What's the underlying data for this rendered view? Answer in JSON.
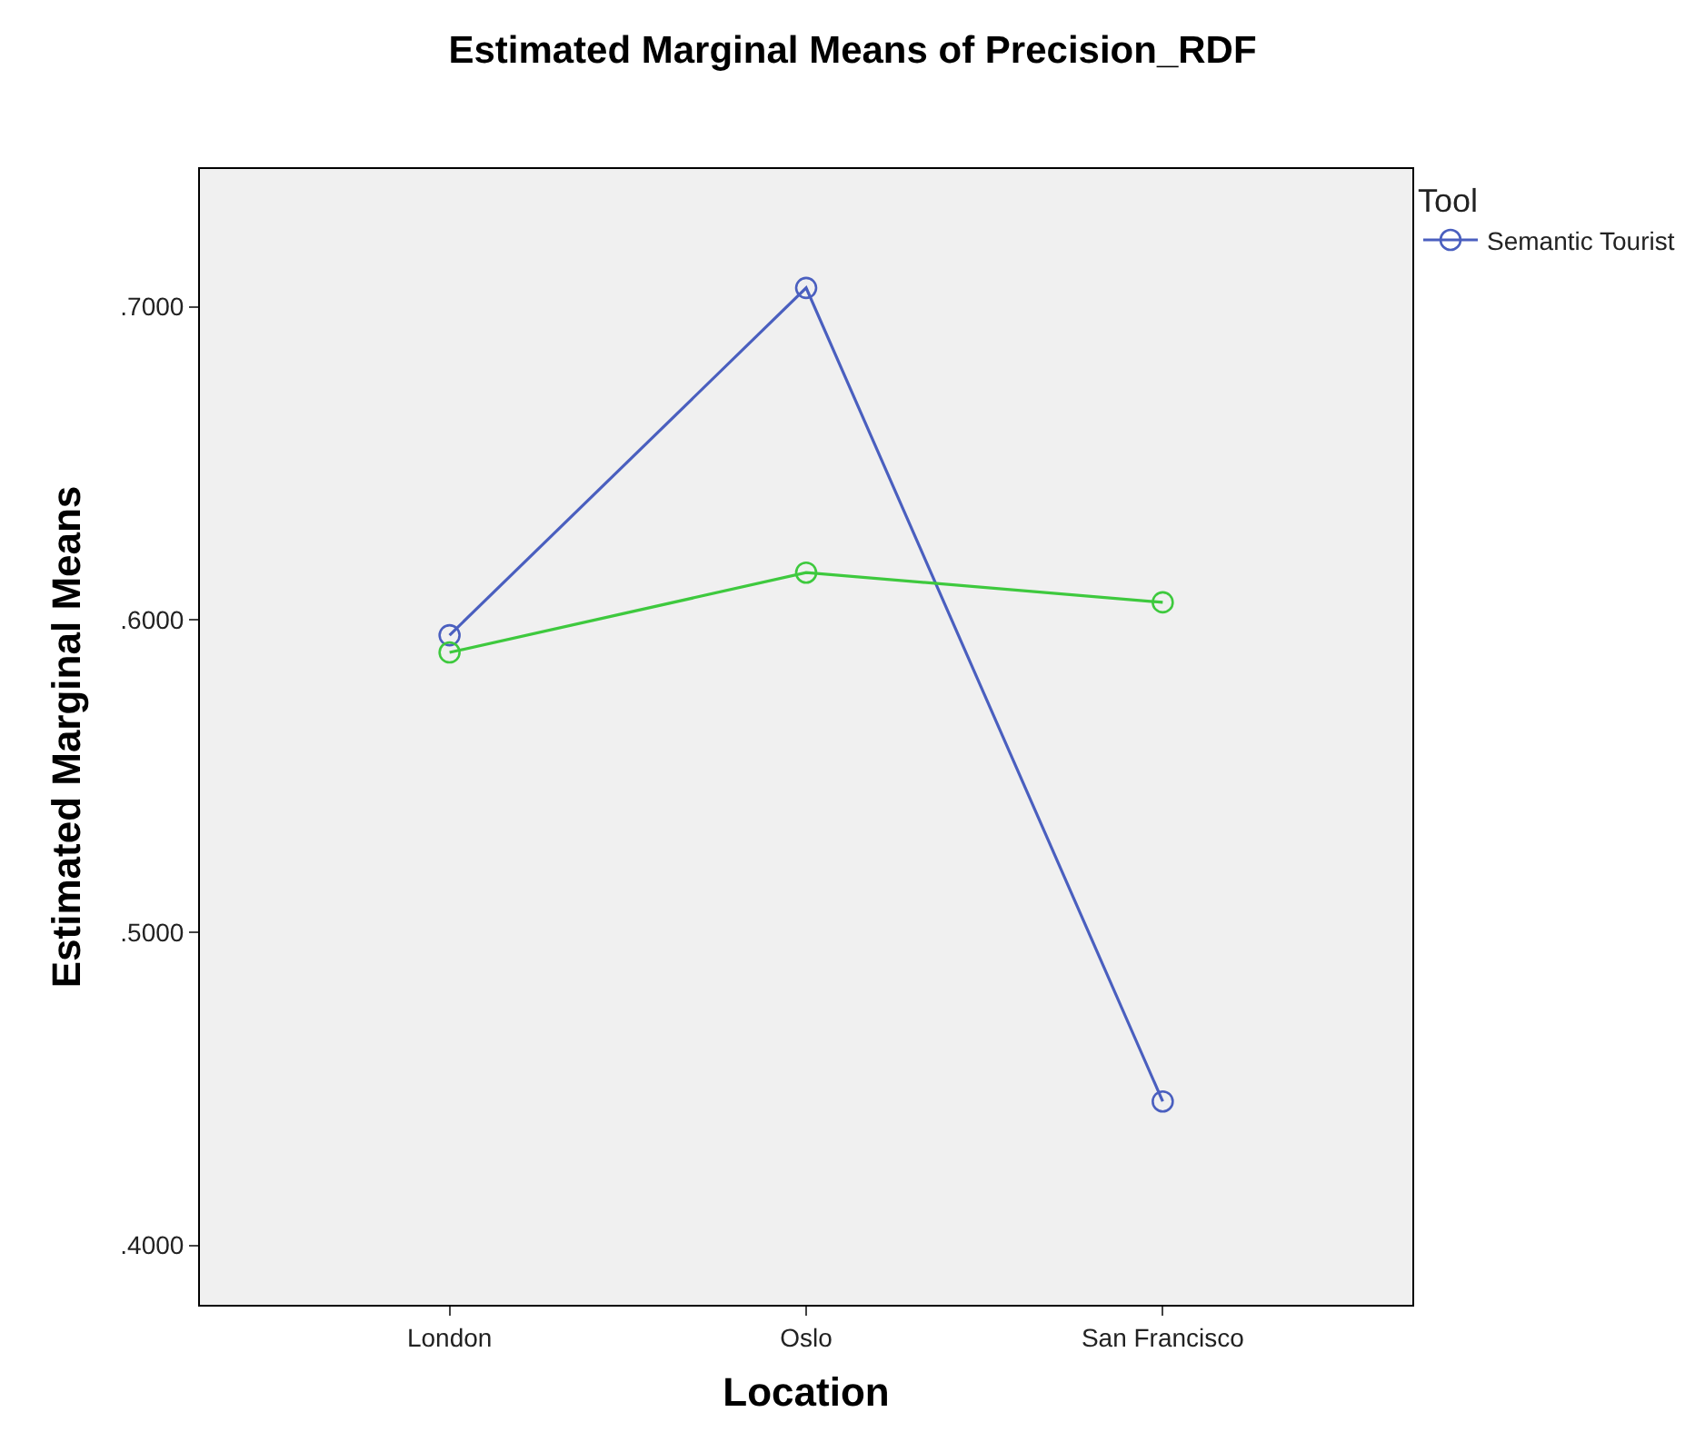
{
  "chart_data": {
    "type": "line",
    "title": "Estimated Marginal Means of Precision_RDF",
    "xlabel": "Location",
    "ylabel": "Estimated Marginal Means",
    "legend_title": "Tool",
    "categories": [
      "London",
      "Oslo",
      "San Francisco"
    ],
    "series": [
      {
        "name": "Semantic Tourist",
        "color": "#4a5fbf",
        "values": [
          0.595,
          0.706,
          0.446
        ]
      },
      {
        "color": "#3ec93e",
        "values": [
          0.5895,
          0.615,
          0.6055
        ]
      }
    ],
    "ylim": [
      0.381,
      0.744
    ],
    "yticks": [
      {
        "value": 0.4,
        "label": ".4000"
      },
      {
        "value": 0.5,
        "label": ".5000"
      },
      {
        "value": 0.6,
        "label": ".6000"
      },
      {
        "value": 0.7,
        "label": ".7000"
      }
    ],
    "grid": false,
    "legend": "top right",
    "marker": "circle"
  }
}
